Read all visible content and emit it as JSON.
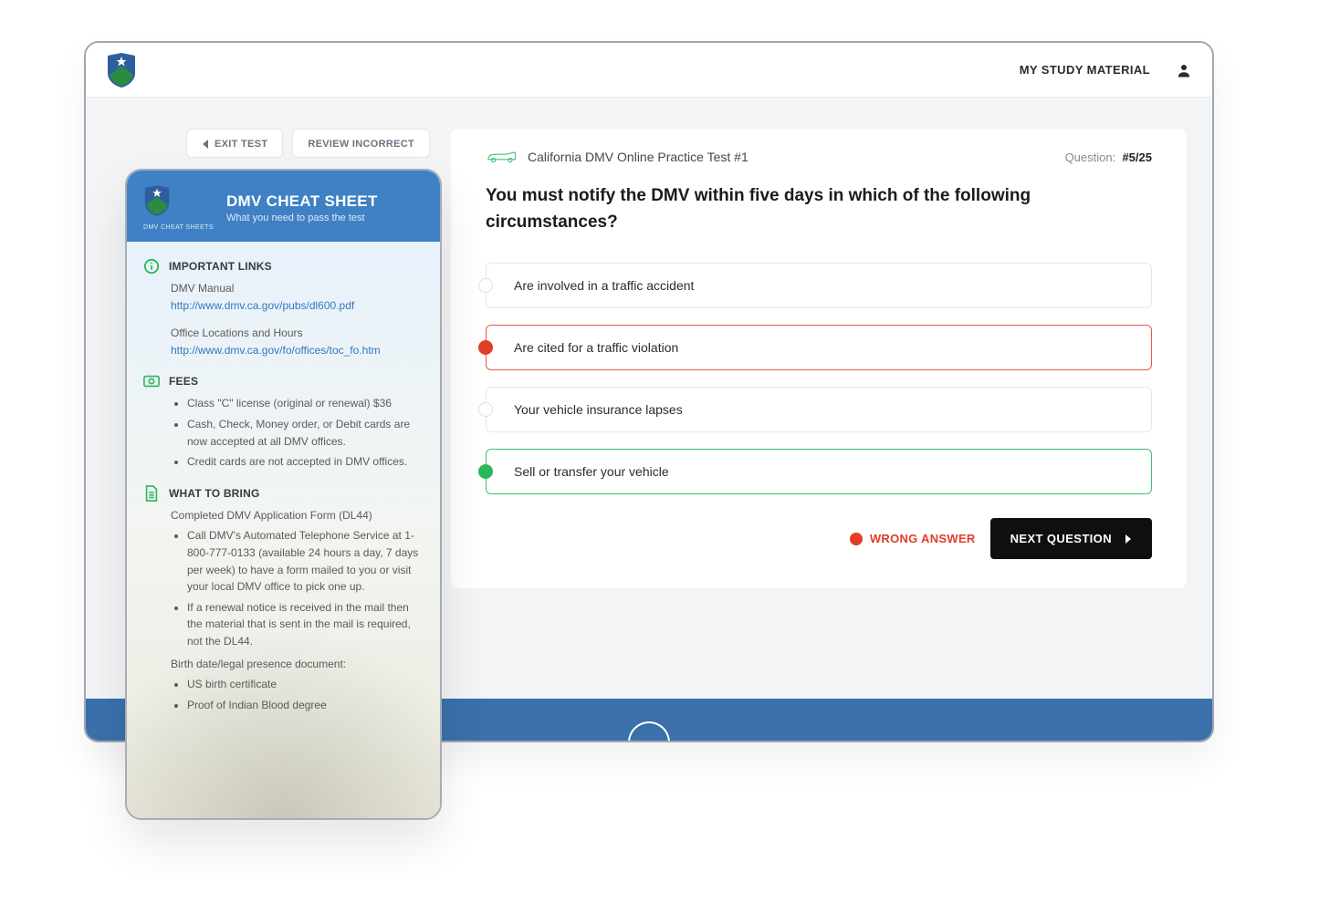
{
  "colors": {
    "header_blue": "#3f81c4",
    "footer_blue": "#3b70ab",
    "wrong": "#e23d27",
    "wrong_border": "#e95a3f",
    "correct": "#2ab858",
    "correct_border": "#3fbf6f",
    "link": "#2f77c2",
    "bg": "#f3f4f6"
  },
  "topbar": {
    "nav_label": "MY STUDY MATERIAL"
  },
  "left_buttons": {
    "exit": "EXIT TEST",
    "review": "REVIEW INCORRECT"
  },
  "quiz": {
    "title": "California DMV Online Practice Test #1",
    "counter_label": "Question:",
    "counter_value": "#5/25",
    "question": "You must notify the DMV within five days in which of the following circumstances?",
    "answers": [
      {
        "text": "Are involved in a traffic accident",
        "state": "normal"
      },
      {
        "text": "Are cited for a traffic violation",
        "state": "wrong"
      },
      {
        "text": "Your vehicle insurance lapses",
        "state": "normal"
      },
      {
        "text": "Sell or transfer your vehicle",
        "state": "correct"
      }
    ],
    "wrong_label": "WRONG ANSWER",
    "next_label": "NEXT QUESTION"
  },
  "cheat_sheet": {
    "brand_sub": "DMV CHEAT SHEETS",
    "title": "DMV CHEAT SHEET",
    "subtitle": "What you need to pass the test",
    "sections": {
      "links": {
        "title": "IMPORTANT LINKS",
        "items": [
          {
            "label": "DMV Manual",
            "url": "http://www.dmv.ca.gov/pubs/dl600.pdf"
          },
          {
            "label": "Office Locations and Hours",
            "url": "http://www.dmv.ca.gov/fo/offices/toc_fo.htm"
          }
        ]
      },
      "fees": {
        "title": "FEES",
        "bullets": [
          "Class \"C\" license (original or renewal) $36",
          "Cash, Check, Money order, or Debit cards are now accepted at all DMV offices.",
          "Credit cards are not accepted in DMV offices."
        ]
      },
      "bring": {
        "title": "WHAT TO BRING",
        "intro": "Completed DMV Application Form (DL44)",
        "bullets": [
          "Call DMV's Automated Telephone Service at 1-800-777-0133 (available 24 hours a day, 7 days per week) to have a form mailed to you or visit your local DMV office to pick one up.",
          "If a renewal notice is received in the mail then the material that is sent in the mail is required, not the DL44."
        ],
        "sub_intro": "Birth date/legal presence document:",
        "sub_bullets": [
          "US birth certificate",
          "Proof of Indian Blood degree"
        ]
      }
    }
  }
}
